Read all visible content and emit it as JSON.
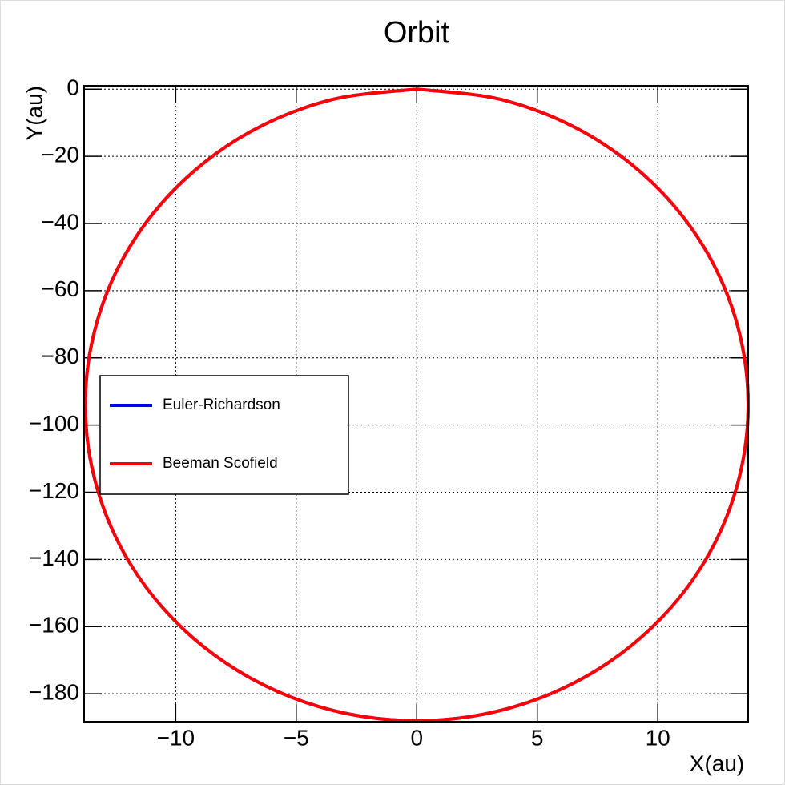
{
  "chart_data": {
    "type": "line",
    "title": "Orbit",
    "xlabel": "X(au)",
    "ylabel": "Y(au)",
    "xlim": [
      -13.8,
      13.75
    ],
    "ylim": [
      -188.3,
      1
    ],
    "xticks": [
      {
        "value": -10,
        "label": "−10"
      },
      {
        "value": -5,
        "label": "−5"
      },
      0,
      5,
      10
    ],
    "yticks": [
      0,
      {
        "value": -20,
        "label": "−20"
      },
      {
        "value": -40,
        "label": "−40"
      },
      {
        "value": -60,
        "label": "−60"
      },
      {
        "value": -80,
        "label": "−80"
      },
      {
        "value": -100,
        "label": "−100"
      },
      {
        "value": -120,
        "label": "−120"
      },
      {
        "value": -140,
        "label": "−140"
      },
      {
        "value": -160,
        "label": "−160"
      },
      {
        "value": -180,
        "label": "−180"
      }
    ],
    "grid": true,
    "legend": "center-left",
    "series": [
      {
        "name": "Euler-Richardson",
        "color": "#0000ff",
        "x": [
          0,
          3.56,
          6.88,
          9.72,
          11.91,
          13.28,
          13.75,
          13.28,
          11.91,
          9.72,
          6.88,
          3.56,
          0,
          -3.56,
          -6.88,
          -9.72,
          -11.91,
          -13.28,
          -13.75,
          -13.28,
          -11.91,
          -9.72,
          -6.88,
          -3.56,
          0
        ],
        "values": [
          0,
          -3.2,
          -12.6,
          -27.53,
          -47,
          -69.67,
          -94,
          -118.33,
          -141,
          -160.47,
          -175.4,
          -184.8,
          -188,
          -184.8,
          -175.4,
          -160.47,
          -141,
          -118.33,
          -94,
          -69.67,
          -47,
          -27.53,
          -12.6,
          -3.2,
          0
        ]
      },
      {
        "name": "Beeman Scofield",
        "color": "#ff0000",
        "x": [
          0,
          3.56,
          6.88,
          9.72,
          11.91,
          13.28,
          13.75,
          13.28,
          11.91,
          9.72,
          6.88,
          3.56,
          0,
          -3.56,
          -6.88,
          -9.72,
          -11.91,
          -13.28,
          -13.75,
          -13.28,
          -11.91,
          -9.72,
          -6.88,
          -3.56,
          0
        ],
        "values": [
          0,
          -3.2,
          -12.6,
          -27.53,
          -47,
          -69.67,
          -94,
          -118.33,
          -141,
          -160.47,
          -175.4,
          -184.8,
          -188,
          -184.8,
          -175.4,
          -160.47,
          -141,
          -118.33,
          -94,
          -69.67,
          -47,
          -27.53,
          -12.6,
          -3.2,
          0
        ]
      }
    ]
  }
}
